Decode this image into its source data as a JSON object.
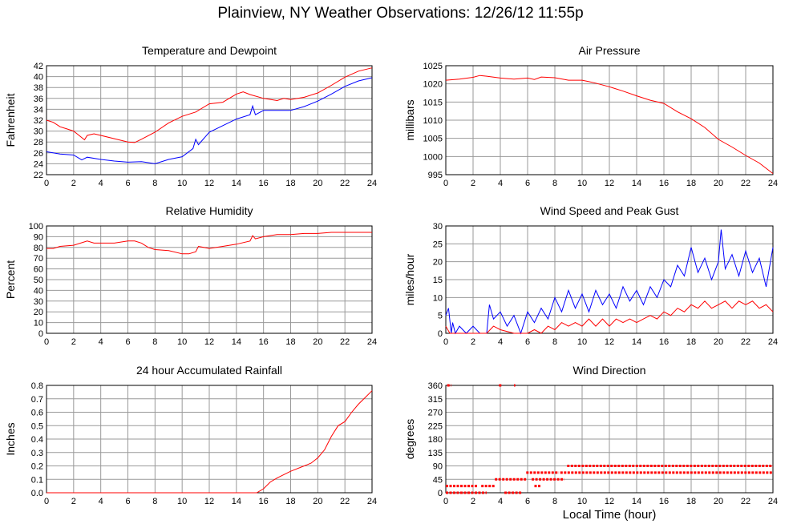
{
  "page": {
    "title": "Plainview, NY Weather Observations: 12/26/12 11:55p",
    "x_axis_label": "Local Time (hour)"
  },
  "colors": {
    "temperature": "#ff0000",
    "dewpoint": "#0000ff",
    "grid": "#999999",
    "frame": "#000000"
  },
  "chart_data": [
    {
      "id": "temperature",
      "type": "line",
      "title": "Temperature and Dewpoint",
      "ylabel": "Fahrenheit",
      "xlim": [
        0,
        24
      ],
      "ylim": [
        22,
        42
      ],
      "x_ticks": [
        0,
        2,
        4,
        6,
        8,
        10,
        12,
        14,
        16,
        18,
        20,
        22,
        24
      ],
      "y_ticks": [
        22,
        24,
        26,
        28,
        30,
        32,
        34,
        36,
        38,
        40,
        42
      ],
      "grid": true,
      "series": [
        {
          "color": "#ff0000",
          "x": [
            0,
            0.5,
            1,
            1.5,
            2,
            2.5,
            2.8,
            3,
            3.5,
            4,
            5,
            6,
            6.5,
            7,
            8,
            9,
            10,
            11,
            12,
            13,
            14,
            14.5,
            15,
            16,
            17,
            17.5,
            18,
            19,
            20,
            21,
            22,
            23,
            24
          ],
          "y": [
            32,
            31.6,
            30.8,
            30.4,
            30,
            29,
            28.4,
            29.2,
            29.5,
            29.2,
            28.6,
            28,
            27.9,
            28.5,
            29.8,
            31.5,
            32.7,
            33.5,
            35,
            35.3,
            36.8,
            37.2,
            36.7,
            36,
            35.6,
            36,
            35.8,
            36.2,
            37,
            38.4,
            39.9,
            41,
            41.6
          ]
        },
        {
          "color": "#0000ff",
          "x": [
            0,
            1,
            2,
            2.6,
            3,
            4,
            5,
            6,
            7,
            7.5,
            8,
            9,
            10,
            10.8,
            11,
            11.2,
            12,
            13,
            14,
            15,
            15.2,
            15.4,
            16,
            17,
            18,
            19,
            20,
            21,
            22,
            23,
            24
          ],
          "y": [
            26.2,
            25.8,
            25.6,
            24.7,
            25.2,
            24.8,
            24.5,
            24.3,
            24.4,
            24.2,
            24,
            24.8,
            25.3,
            26.8,
            28.5,
            27.5,
            29.8,
            31,
            32.2,
            33,
            34.6,
            33,
            33.8,
            33.8,
            33.8,
            34.5,
            35.5,
            36.8,
            38.2,
            39.2,
            39.8
          ]
        }
      ]
    },
    {
      "id": "pressure",
      "type": "line",
      "title": "Air Pressure",
      "ylabel": "millibars",
      "xlim": [
        0,
        24
      ],
      "ylim": [
        995,
        1025
      ],
      "x_ticks": [
        0,
        2,
        4,
        6,
        8,
        10,
        12,
        14,
        16,
        18,
        20,
        22,
        24
      ],
      "y_ticks": [
        995,
        1000,
        1005,
        1010,
        1015,
        1020,
        1025
      ],
      "grid": true,
      "series": [
        {
          "color": "#ff0000",
          "x": [
            0,
            1,
            2,
            2.5,
            3,
            4,
            5,
            6,
            6.5,
            7,
            8,
            9,
            10,
            10.5,
            11,
            12,
            13,
            14,
            15,
            16,
            17,
            18,
            19,
            20,
            21,
            22,
            23,
            24
          ],
          "y": [
            1021,
            1021.3,
            1021.8,
            1022.3,
            1022.1,
            1021.6,
            1021.3,
            1021.6,
            1021.2,
            1021.9,
            1021.7,
            1021,
            1021,
            1020.6,
            1020.2,
            1019.2,
            1018,
            1016.7,
            1015.5,
            1014.6,
            1012.3,
            1010.4,
            1008,
            1004.7,
            1002.6,
            1000.3,
            998.2,
            995.3
          ]
        }
      ]
    },
    {
      "id": "humidity",
      "type": "line",
      "title": "Relative Humidity",
      "ylabel": "Percent",
      "xlim": [
        0,
        24
      ],
      "ylim": [
        0,
        100
      ],
      "x_ticks": [
        0,
        2,
        4,
        6,
        8,
        10,
        12,
        14,
        16,
        18,
        20,
        22,
        24
      ],
      "y_ticks": [
        0,
        10,
        20,
        30,
        40,
        50,
        60,
        70,
        80,
        90,
        100
      ],
      "grid": true,
      "series": [
        {
          "color": "#ff0000",
          "x": [
            0,
            0.5,
            1,
            2,
            3,
            3.5,
            4,
            5,
            6,
            6.5,
            7,
            7.5,
            8,
            9,
            10,
            10.5,
            11,
            11.2,
            12,
            13,
            14,
            15,
            15.2,
            15.4,
            16,
            17,
            18,
            19,
            20,
            21,
            22,
            23,
            24
          ],
          "y": [
            79,
            79,
            81,
            82,
            86,
            84,
            84,
            84,
            86,
            86,
            84,
            80,
            78,
            77,
            74,
            74,
            76,
            81,
            79,
            81,
            83,
            86,
            91,
            88,
            90,
            92,
            92,
            93,
            93,
            94,
            94,
            94,
            94
          ]
        }
      ]
    },
    {
      "id": "wind_speed",
      "type": "line",
      "title": "Wind Speed and Peak Gust",
      "ylabel": "miles/hour",
      "xlim": [
        0,
        24
      ],
      "ylim": [
        0,
        30
      ],
      "x_ticks": [
        0,
        2,
        4,
        6,
        8,
        10,
        12,
        14,
        16,
        18,
        20,
        22,
        24
      ],
      "y_ticks": [
        0,
        5,
        10,
        15,
        20,
        25,
        30
      ],
      "grid": true,
      "series": [
        {
          "color": "#0000ff",
          "x": [
            0,
            0.2,
            0.4,
            0.5,
            0.7,
            1,
            1.5,
            2,
            2.5,
            3,
            3.2,
            3.5,
            4,
            4.5,
            5,
            5.5,
            6,
            6.5,
            7,
            7.5,
            8,
            8.5,
            9,
            9.5,
            10,
            10.5,
            11,
            11.5,
            12,
            12.5,
            13,
            13.5,
            14,
            14.5,
            15,
            15.5,
            16,
            16.5,
            17,
            17.5,
            18,
            18.5,
            19,
            19.5,
            20,
            20.2,
            20.5,
            21,
            21.5,
            22,
            22.5,
            23,
            23.5,
            24
          ],
          "y": [
            5,
            7,
            0,
            3,
            0,
            2,
            0,
            2,
            0,
            0,
            8,
            4,
            6,
            2,
            5,
            0,
            6,
            3,
            7,
            4,
            10,
            6,
            12,
            7,
            11,
            6,
            12,
            8,
            11,
            7,
            13,
            9,
            12,
            8,
            13,
            10,
            15,
            13,
            19,
            16,
            24,
            17,
            21,
            15,
            20,
            29,
            18,
            22,
            16,
            23,
            17,
            21,
            13,
            24
          ]
        },
        {
          "color": "#ff0000",
          "x": [
            0,
            0.3,
            0.6,
            1,
            2,
            3,
            3.5,
            4,
            5,
            6,
            6.5,
            7,
            7.5,
            8,
            8.5,
            9,
            9.5,
            10,
            10.5,
            11,
            11.5,
            12,
            12.5,
            13,
            13.5,
            14,
            14.5,
            15,
            15.5,
            16,
            16.5,
            17,
            17.5,
            18,
            18.5,
            19,
            19.5,
            20,
            20.5,
            21,
            21.5,
            22,
            22.5,
            23,
            23.5,
            24
          ],
          "y": [
            2,
            0,
            0,
            0,
            0,
            0,
            2,
            1,
            0,
            0,
            1,
            0,
            2,
            1,
            3,
            2,
            3,
            2,
            4,
            2,
            4,
            2,
            4,
            3,
            4,
            3,
            4,
            5,
            4,
            6,
            5,
            7,
            6,
            8,
            7,
            9,
            7,
            8,
            9,
            7,
            9,
            8,
            9,
            7,
            8,
            6
          ]
        }
      ]
    },
    {
      "id": "rainfall",
      "type": "line",
      "title": "24 hour Accumulated Rainfall",
      "ylabel": "Inches",
      "xlim": [
        0,
        24
      ],
      "ylim": [
        0,
        0.8
      ],
      "x_ticks": [
        0,
        2,
        4,
        6,
        8,
        10,
        12,
        14,
        16,
        18,
        20,
        22,
        24
      ],
      "y_ticks": [
        0.0,
        0.1,
        0.2,
        0.3,
        0.4,
        0.5,
        0.6,
        0.7,
        0.8
      ],
      "y_tick_labels": [
        "0.0",
        "0.1",
        "0.2",
        "0.3",
        "0.4",
        "0.5",
        "0.6",
        "0.7",
        "0.8"
      ],
      "grid": true,
      "series": [
        {
          "color": "#ff0000",
          "x": [
            0,
            15.5,
            16,
            16.5,
            17,
            18,
            19,
            19.5,
            20,
            20.5,
            21,
            21.5,
            22,
            22.5,
            23,
            23.5,
            24
          ],
          "y": [
            0,
            0,
            0.03,
            0.08,
            0.11,
            0.16,
            0.2,
            0.22,
            0.26,
            0.32,
            0.42,
            0.5,
            0.53,
            0.6,
            0.66,
            0.71,
            0.76
          ]
        }
      ]
    },
    {
      "id": "wind_direction",
      "type": "scatter",
      "title": "Wind Direction",
      "ylabel": "degrees",
      "xlim": [
        0,
        24
      ],
      "ylim": [
        0,
        360
      ],
      "x_ticks": [
        0,
        2,
        4,
        6,
        8,
        10,
        12,
        14,
        16,
        18,
        20,
        22,
        24
      ],
      "y_ticks": [
        0,
        45,
        90,
        135,
        180,
        225,
        270,
        315,
        360
      ],
      "grid": true,
      "segments": [
        {
          "x1": 0.1,
          "x2": 0.4,
          "y": 360
        },
        {
          "x1": 3.9,
          "x2": 4.1,
          "y": 360
        },
        {
          "x1": 5.0,
          "x2": 5.1,
          "y": 360
        },
        {
          "x1": 0.0,
          "x2": 2.3,
          "y": 22.5
        },
        {
          "x1": 0.0,
          "x2": 3.0,
          "y": 0
        },
        {
          "x1": 2.6,
          "x2": 3.6,
          "y": 22.5
        },
        {
          "x1": 3.6,
          "x2": 5.9,
          "y": 45
        },
        {
          "x1": 4.3,
          "x2": 5.6,
          "y": 0
        },
        {
          "x1": 5.9,
          "x2": 8.3,
          "y": 67.5
        },
        {
          "x1": 6.5,
          "x2": 7.0,
          "y": 22.5
        },
        {
          "x1": 6.3,
          "x2": 8.7,
          "y": 45
        },
        {
          "x1": 8.4,
          "x2": 24,
          "y": 67.5
        },
        {
          "x1": 8.9,
          "x2": 24,
          "y": 90
        }
      ]
    }
  ]
}
